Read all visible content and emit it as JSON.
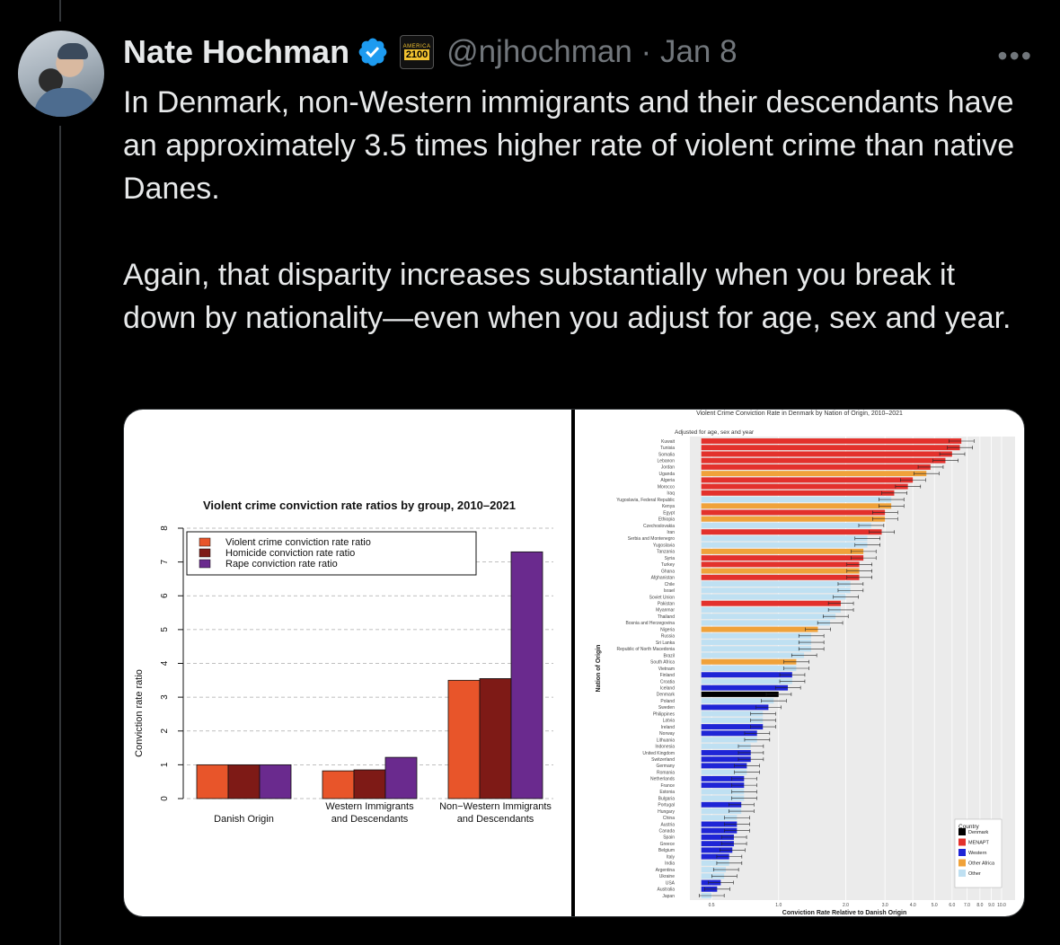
{
  "author": {
    "name": "Nate Hochman",
    "handle": "@njhochman",
    "date": "Jan 8",
    "org_badge": {
      "top": "AMERICA",
      "num": "2100"
    }
  },
  "more_label": "•••",
  "tweet": {
    "paragraph1": "In Denmark, non-Western immigrants and their descendants have an approximately 3.5 times higher rate of violent crime than native Danes.",
    "paragraph2": "Again, that disparity increases substantially when you break it down by nationality—even when you adjust for age, sex and year."
  },
  "chart_data": [
    {
      "type": "bar",
      "title": "Violent crime conviction rate ratios by group, 2010–2021",
      "ylabel": "Conviction rate ratio",
      "ylim": [
        0,
        8
      ],
      "yticks": [
        "0",
        "1",
        "2",
        "3",
        "4",
        "5",
        "6",
        "7",
        "8"
      ],
      "categories": [
        "Danish Origin",
        "Western Immigrants and Descendants",
        "Non-Western Immigrants and Descendants"
      ],
      "category_lines": [
        [
          "Danish Origin"
        ],
        [
          "Western Immigrants",
          "and Descendants"
        ],
        [
          "Non−Western Immigrants",
          "and Descendants"
        ]
      ],
      "series": [
        {
          "name": "Violent crime conviction rate ratio",
          "color": "#e8552a",
          "values": [
            1.0,
            0.82,
            3.5
          ]
        },
        {
          "name": "Homicide conviction rate ratio",
          "color": "#7e1a16",
          "values": [
            1.0,
            0.85,
            3.55
          ]
        },
        {
          "name": "Rape conviction rate ratio",
          "color": "#6a2a8e",
          "values": [
            1.0,
            1.22,
            7.3
          ]
        }
      ],
      "grid": true,
      "legend_position": "top-left"
    },
    {
      "type": "bar",
      "orientation": "horizontal",
      "title": "Violent Crime Conviction Rate in Denmark by Nation of Origin, 2010–2021",
      "subtitle": "Adjusted for age, sex and year",
      "xlabel": "Conviction Rate Relative to Danish Origin",
      "ylabel": "Nation of Origin",
      "xticks": [
        "0.5",
        "1.0",
        "2.0",
        "3.0",
        "4.0",
        "5.0",
        "6.0",
        "7.0",
        "8.0",
        "9.0",
        "10.0"
      ],
      "xscale": "log",
      "legend": {
        "title": "Country",
        "entries": [
          {
            "name": "Denmark",
            "color": "#000000"
          },
          {
            "name": "MENAPT",
            "color": "#e3312c"
          },
          {
            "name": "Western",
            "color": "#1f25d6"
          },
          {
            "name": "Other Africa",
            "color": "#f0a23a"
          },
          {
            "name": "Other",
            "color": "#bfe0f2"
          }
        ]
      },
      "countries": [
        {
          "name": "Kuwait",
          "group": "MENAPT",
          "value": 6.6
        },
        {
          "name": "Tunisia",
          "group": "MENAPT",
          "value": 6.5
        },
        {
          "name": "Somalia",
          "group": "MENAPT",
          "value": 6.0
        },
        {
          "name": "Lebanon",
          "group": "MENAPT",
          "value": 5.6
        },
        {
          "name": "Jordan",
          "group": "MENAPT",
          "value": 4.8
        },
        {
          "name": "Uganda",
          "group": "Other Africa",
          "value": 4.6
        },
        {
          "name": "Algeria",
          "group": "MENAPT",
          "value": 4.0
        },
        {
          "name": "Morocco",
          "group": "MENAPT",
          "value": 3.8
        },
        {
          "name": "Iraq",
          "group": "MENAPT",
          "value": 3.3
        },
        {
          "name": "Yugoslavia, Federal Republic",
          "group": "Other",
          "value": 3.2
        },
        {
          "name": "Kenya",
          "group": "Other Africa",
          "value": 3.2
        },
        {
          "name": "Egypt",
          "group": "MENAPT",
          "value": 3.0
        },
        {
          "name": "Ethiopia",
          "group": "Other Africa",
          "value": 3.0
        },
        {
          "name": "Czechoslovakia",
          "group": "Other",
          "value": 2.6
        },
        {
          "name": "Iran",
          "group": "MENAPT",
          "value": 2.9
        },
        {
          "name": "Serbia and Montenegro",
          "group": "Other",
          "value": 2.5
        },
        {
          "name": "Yugoslavia",
          "group": "Other",
          "value": 2.5
        },
        {
          "name": "Tanzania",
          "group": "Other Africa",
          "value": 2.4
        },
        {
          "name": "Syria",
          "group": "MENAPT",
          "value": 2.4
        },
        {
          "name": "Turkey",
          "group": "MENAPT",
          "value": 2.3
        },
        {
          "name": "Ghana",
          "group": "Other Africa",
          "value": 2.3
        },
        {
          "name": "Afghanistan",
          "group": "MENAPT",
          "value": 2.3
        },
        {
          "name": "Chile",
          "group": "Other",
          "value": 2.1
        },
        {
          "name": "Israel",
          "group": "Other",
          "value": 2.1
        },
        {
          "name": "Soviet Union",
          "group": "Other",
          "value": 2.0
        },
        {
          "name": "Pakistan",
          "group": "MENAPT",
          "value": 1.9
        },
        {
          "name": "Myanmar",
          "group": "Other",
          "value": 1.9
        },
        {
          "name": "Thailand",
          "group": "Other",
          "value": 1.8
        },
        {
          "name": "Bosnia and Herzegovina",
          "group": "Other",
          "value": 1.7
        },
        {
          "name": "Nigeria",
          "group": "Other Africa",
          "value": 1.5
        },
        {
          "name": "Russia",
          "group": "Other",
          "value": 1.4
        },
        {
          "name": "Sri Lanka",
          "group": "Other",
          "value": 1.4
        },
        {
          "name": "Republic of North Macedonia",
          "group": "Other",
          "value": 1.4
        },
        {
          "name": "Brazil",
          "group": "Other",
          "value": 1.3
        },
        {
          "name": "South Africa",
          "group": "Other Africa",
          "value": 1.2
        },
        {
          "name": "Vietnam",
          "group": "Other",
          "value": 1.2
        },
        {
          "name": "Finland",
          "group": "Western",
          "value": 1.15
        },
        {
          "name": "Croatia",
          "group": "Other",
          "value": 1.15
        },
        {
          "name": "Iceland",
          "group": "Western",
          "value": 1.1
        },
        {
          "name": "Denmark",
          "group": "Denmark",
          "value": 1.0
        },
        {
          "name": "Poland",
          "group": "Other",
          "value": 0.95
        },
        {
          "name": "Sweden",
          "group": "Western",
          "value": 0.9
        },
        {
          "name": "Philippines",
          "group": "Other",
          "value": 0.85
        },
        {
          "name": "Latvia",
          "group": "Other",
          "value": 0.85
        },
        {
          "name": "Ireland",
          "group": "Western",
          "value": 0.85
        },
        {
          "name": "Norway",
          "group": "Western",
          "value": 0.8
        },
        {
          "name": "Lithuania",
          "group": "Other",
          "value": 0.8
        },
        {
          "name": "Indonesia",
          "group": "Other",
          "value": 0.75
        },
        {
          "name": "United Kingdom",
          "group": "Western",
          "value": 0.75
        },
        {
          "name": "Switzerland",
          "group": "Western",
          "value": 0.75
        },
        {
          "name": "Germany",
          "group": "Western",
          "value": 0.72
        },
        {
          "name": "Romania",
          "group": "Other",
          "value": 0.72
        },
        {
          "name": "Netherlands",
          "group": "Western",
          "value": 0.7
        },
        {
          "name": "France",
          "group": "Western",
          "value": 0.7
        },
        {
          "name": "Estonia",
          "group": "Other",
          "value": 0.7
        },
        {
          "name": "Bulgaria",
          "group": "Other",
          "value": 0.7
        },
        {
          "name": "Portugal",
          "group": "Western",
          "value": 0.68
        },
        {
          "name": "Hungary",
          "group": "Other",
          "value": 0.68
        },
        {
          "name": "China",
          "group": "Other",
          "value": 0.65
        },
        {
          "name": "Austria",
          "group": "Western",
          "value": 0.65
        },
        {
          "name": "Canada",
          "group": "Western",
          "value": 0.65
        },
        {
          "name": "Spain",
          "group": "Western",
          "value": 0.63
        },
        {
          "name": "Greece",
          "group": "Western",
          "value": 0.63
        },
        {
          "name": "Belgium",
          "group": "Western",
          "value": 0.62
        },
        {
          "name": "Italy",
          "group": "Western",
          "value": 0.6
        },
        {
          "name": "India",
          "group": "Other",
          "value": 0.6
        },
        {
          "name": "Argentina",
          "group": "Other",
          "value": 0.58
        },
        {
          "name": "Ukraine",
          "group": "Other",
          "value": 0.57
        },
        {
          "name": "USA",
          "group": "Western",
          "value": 0.55
        },
        {
          "name": "Australia",
          "group": "Western",
          "value": 0.53
        },
        {
          "name": "Japan",
          "group": "Other",
          "value": 0.5
        }
      ]
    }
  ]
}
